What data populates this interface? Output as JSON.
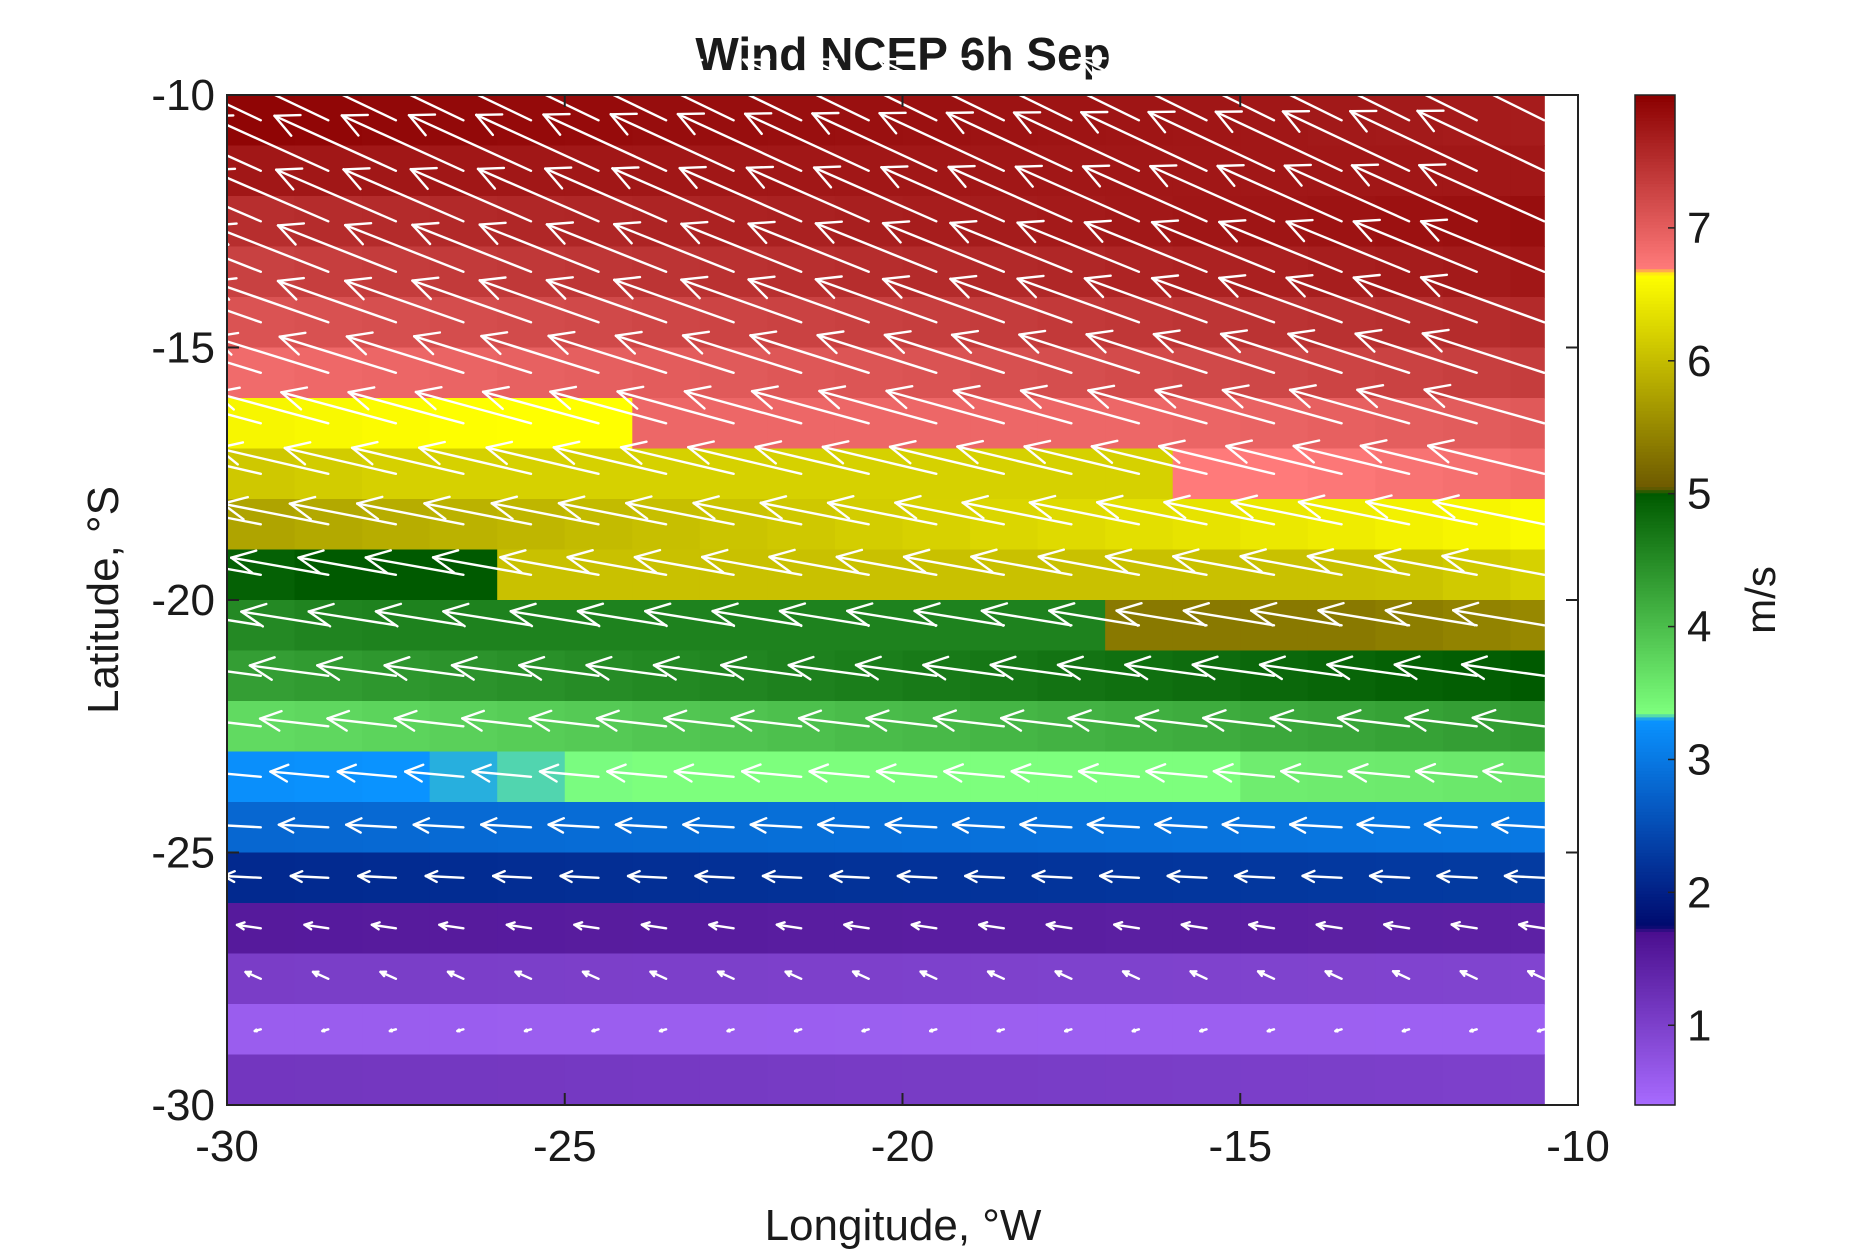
{
  "chart_data": {
    "type": "heatmap",
    "title": "Wind NCEP 6h Sep",
    "xlabel": "Longitude, °W",
    "ylabel": "Latitude, °S",
    "colorbar_label": "m/s",
    "xlim": [
      -30,
      -10
    ],
    "ylim": [
      -30,
      -10
    ],
    "x_ticks": [
      -30,
      -25,
      -20,
      -15,
      -10
    ],
    "y_ticks": [
      -30,
      -25,
      -20,
      -15,
      -10
    ],
    "colorbar_ticks": [
      1,
      2,
      3,
      4,
      5,
      6,
      7
    ],
    "colorbar_range": [
      0.4,
      8.0
    ],
    "data_extent": {
      "lon": [
        -30,
        -10.5
      ],
      "lat": [
        -30,
        -10.5
      ]
    },
    "grid_step_deg": 1.0,
    "colormap_stops": [
      {
        "v": 0.4,
        "color": "#a86bff"
      },
      {
        "v": 1.7,
        "color": "#4b0f8f"
      },
      {
        "v": 1.75,
        "color": "#000a6e"
      },
      {
        "v": 3.3,
        "color": "#0a93ff"
      },
      {
        "v": 3.35,
        "color": "#7dff7d"
      },
      {
        "v": 5.0,
        "color": "#005a00"
      },
      {
        "v": 5.05,
        "color": "#6e5a00"
      },
      {
        "v": 6.65,
        "color": "#ffff00"
      },
      {
        "v": 6.7,
        "color": "#ff7a7a"
      },
      {
        "v": 8.0,
        "color": "#8b0000"
      }
    ],
    "speed_rows": [
      {
        "lat": -10.5,
        "west": 7.95,
        "east": 7.7
      },
      {
        "lat": -11.5,
        "west": 7.75,
        "east": 7.75
      },
      {
        "lat": -12.5,
        "west": 7.5,
        "east": 7.85
      },
      {
        "lat": -13.5,
        "west": 7.3,
        "east": 7.75
      },
      {
        "lat": -14.5,
        "west": 7.1,
        "east": 7.55
      },
      {
        "lat": -15.5,
        "west": 6.85,
        "east": 7.35
      },
      {
        "lat": -16.5,
        "west": 6.55,
        "east": 7.05,
        "break_lon": -23.5
      },
      {
        "lat": -17.5,
        "west": 6.1,
        "east": 6.85,
        "break_lon": -15.5
      },
      {
        "lat": -18.5,
        "west": 5.75,
        "east": 6.6
      },
      {
        "lat": -19.5,
        "west": 4.9,
        "east": 6.2,
        "break_lon": -25.5
      },
      {
        "lat": -20.5,
        "west": 4.5,
        "east": 5.5,
        "break_lon": -16.5
      },
      {
        "lat": -21.5,
        "west": 4.3,
        "east": 5.0
      },
      {
        "lat": -22.5,
        "west": 3.7,
        "east": 4.35
      },
      {
        "lat": -23.5,
        "west": 3.25,
        "east": 3.6,
        "break_lon": -14.5
      },
      {
        "lat": -24.5,
        "west": 2.8,
        "east": 3.0
      },
      {
        "lat": -25.5,
        "west": 2.1,
        "east": 2.3
      },
      {
        "lat": -26.5,
        "west": 1.55,
        "east": 1.45
      },
      {
        "lat": -27.5,
        "west": 1.05,
        "east": 0.95
      },
      {
        "lat": -28.5,
        "west": 0.6,
        "east": 0.55
      },
      {
        "lat": -29.5,
        "west": 1.15,
        "east": 1.0
      }
    ],
    "wind_vectors": {
      "lon": [
        -29.5,
        -28.5,
        -27.5,
        -26.5,
        -25.5,
        -24.5,
        -23.5,
        -22.5,
        -21.5,
        -20.5,
        -19.5,
        -18.5,
        -17.5,
        -16.5,
        -15.5,
        -14.5,
        -13.5,
        -12.5,
        -11.5,
        -10.5
      ],
      "lat": [
        -10.5,
        -11.5,
        -12.5,
        -13.5,
        -14.5,
        -15.5,
        -16.5,
        -17.5,
        -18.5,
        -19.5,
        -20.5,
        -21.5,
        -22.5,
        -23.5,
        -24.5,
        -25.5,
        -26.5,
        -27.5,
        -28.5
      ],
      "rows": [
        {
          "lat": -10.5,
          "u": -7.2,
          "v": 3.4
        },
        {
          "lat": -11.5,
          "u": -7.1,
          "v": 3.2
        },
        {
          "lat": -12.5,
          "u": -7.0,
          "v": 3.0
        },
        {
          "lat": -13.5,
          "u": -6.9,
          "v": 2.7
        },
        {
          "lat": -14.5,
          "u": -6.9,
          "v": 2.4
        },
        {
          "lat": -15.5,
          "u": -6.8,
          "v": 2.1
        },
        {
          "lat": -16.5,
          "u": -6.7,
          "v": 1.8
        },
        {
          "lat": -17.5,
          "u": -6.5,
          "v": 1.5
        },
        {
          "lat": -18.5,
          "u": -6.2,
          "v": 1.2
        },
        {
          "lat": -19.5,
          "u": -5.7,
          "v": 1.0
        },
        {
          "lat": -20.5,
          "u": -5.1,
          "v": 0.8
        },
        {
          "lat": -21.5,
          "u": -4.6,
          "v": 0.6
        },
        {
          "lat": -22.5,
          "u": -4.0,
          "v": 0.45
        },
        {
          "lat": -23.5,
          "u": -3.4,
          "v": 0.3
        },
        {
          "lat": -24.5,
          "u": -2.9,
          "v": 0.15
        },
        {
          "lat": -25.5,
          "u": -2.2,
          "v": 0.1
        },
        {
          "lat": -26.5,
          "u": -1.4,
          "v": 0.2
        },
        {
          "lat": -27.5,
          "u": -0.9,
          "v": 0.4
        },
        {
          "lat": -28.5,
          "u": -0.35,
          "v": -0.1
        }
      ]
    },
    "grid": false,
    "legend": "colorbar-right"
  }
}
